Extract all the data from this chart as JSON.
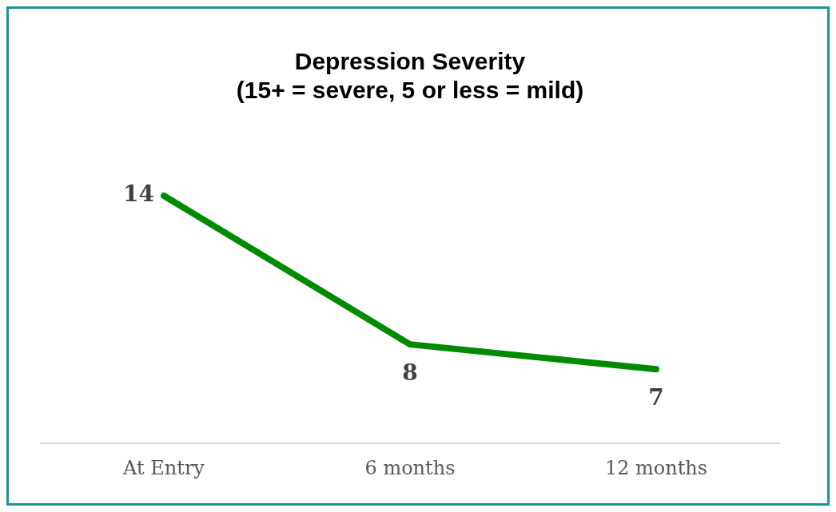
{
  "chart_data": {
    "type": "line",
    "title": "Depression Severity\n(15+ = severe, 5 or less = mild)",
    "categories": [
      "At Entry",
      "6 months",
      "12 months"
    ],
    "series": [
      {
        "color": "#008a00",
        "values": [
          14,
          8,
          7
        ]
      }
    ],
    "data_labels": true,
    "grid": false,
    "legend": false,
    "marker": "none",
    "line_style": "solid"
  }
}
